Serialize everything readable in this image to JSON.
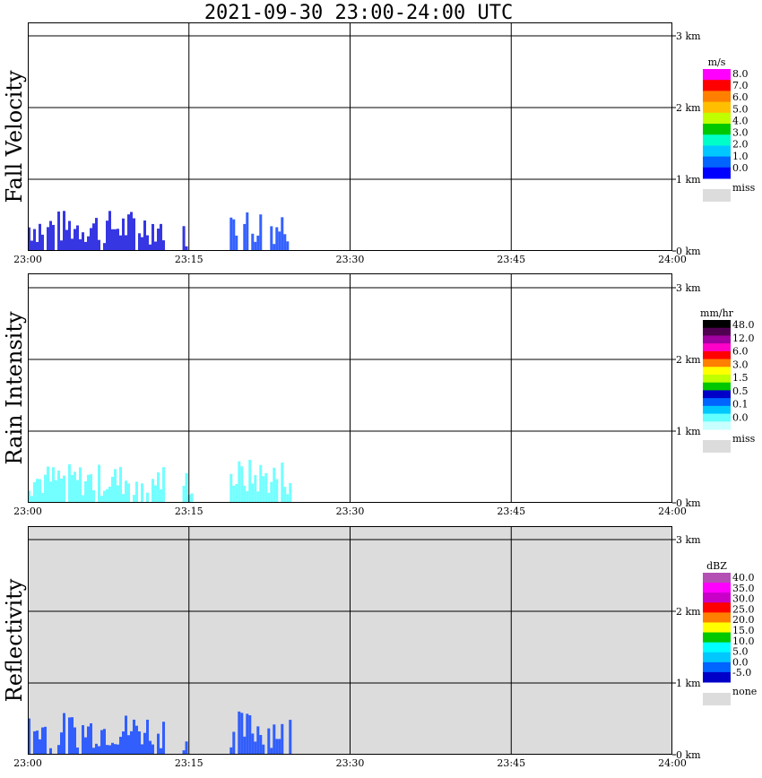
{
  "title": "2021-09-30   23:00-24:00 UTC",
  "colors": {
    "grid": "#000000",
    "plot_bg": "#ffffff",
    "missing_bg": "#dcdcdc"
  },
  "chart_data": [
    {
      "type": "heatmap",
      "ylabel": "Fall Velocity",
      "x_ticks": [
        "23:00",
        "23:15",
        "23:30",
        "23:45",
        "24:00"
      ],
      "y_ticks": [
        "0 km",
        "1 km",
        "2 km",
        "3 km"
      ],
      "xlim": [
        0,
        60
      ],
      "ylim": [
        0,
        3.0
      ],
      "background": "#ffffff",
      "legend": {
        "unit": "m/s",
        "labels": [
          "8.0",
          "7.0",
          "6.0",
          "5.0",
          "4.0",
          "3.0",
          "2.0",
          "1.0",
          "0.0"
        ],
        "colors": [
          "#ff00ff",
          "#ff0000",
          "#ff7f00",
          "#ffbf00",
          "#bfff00",
          "#00c800",
          "#00ffc8",
          "#00c8ff",
          "#0064ff",
          "#0000ff"
        ],
        "missing_label": "miss",
        "missing_color": "#dcdcdc"
      },
      "echoes": [
        {
          "t0": 0.0,
          "t1": 12.8,
          "top": 0.58,
          "color": "#2020e0"
        },
        {
          "t0": 14.4,
          "t1": 15.0,
          "top": 0.38,
          "color": "#2020e0"
        },
        {
          "t0": 18.8,
          "t1": 24.5,
          "top": 0.62,
          "color": "#1e50ff"
        }
      ]
    },
    {
      "type": "heatmap",
      "ylabel": "Rain Intensity",
      "x_ticks": [
        "23:00",
        "23:15",
        "23:30",
        "23:45",
        "24:00"
      ],
      "y_ticks": [
        "0 km",
        "1 km",
        "2 km",
        "3 km"
      ],
      "xlim": [
        0,
        60
      ],
      "ylim": [
        0,
        3.0
      ],
      "background": "#ffffff",
      "legend": {
        "unit": "mm/hr",
        "labels": [
          "48.0",
          "12.0",
          "6.0",
          "3.0",
          "1.5",
          "0.5",
          "0.1",
          "0.0"
        ],
        "colors": [
          "#000000",
          "#500050",
          "#a000a0",
          "#ff00c8",
          "#ff0000",
          "#ff7f00",
          "#ffff00",
          "#bfff00",
          "#00c800",
          "#0000c8",
          "#0064ff",
          "#00c8ff",
          "#64ffff",
          "#c8ffff"
        ],
        "missing_label": "miss",
        "missing_color": "#dcdcdc"
      },
      "echoes": [
        {
          "t0": 0.0,
          "t1": 12.8,
          "top": 0.55,
          "color": "#64ffff"
        },
        {
          "t0": 14.4,
          "t1": 15.4,
          "top": 0.5,
          "color": "#64ffff"
        },
        {
          "t0": 18.8,
          "t1": 24.5,
          "top": 0.62,
          "color": "#64ffff"
        }
      ]
    },
    {
      "type": "heatmap",
      "ylabel": "Reflectivity",
      "x_ticks": [
        "23:00",
        "23:15",
        "23:30",
        "23:45",
        "24:00"
      ],
      "y_ticks": [
        "0 km",
        "1 km",
        "2 km",
        "3 km"
      ],
      "xlim": [
        0,
        60
      ],
      "ylim": [
        0,
        3.0
      ],
      "background": "#dcdcdc",
      "legend": {
        "unit": "dBZ",
        "labels": [
          "40.0",
          "35.0",
          "30.0",
          "25.0",
          "20.0",
          "15.0",
          "10.0",
          "5.0",
          "0.0",
          "-5.0"
        ],
        "colors": [
          "#b450b4",
          "#ff00ff",
          "#c800c8",
          "#ff0000",
          "#ff7f00",
          "#ffff00",
          "#00c800",
          "#00ffff",
          "#00c8ff",
          "#0064ff",
          "#0000c8"
        ],
        "missing_label": "none",
        "missing_color": "#dcdcdc"
      },
      "echoes": [
        {
          "t0": 0.0,
          "t1": 12.8,
          "top": 0.6,
          "color": "#1e50ff"
        },
        {
          "t0": 14.4,
          "t1": 15.0,
          "top": 0.35,
          "color": "#1e50ff"
        },
        {
          "t0": 18.8,
          "t1": 24.5,
          "top": 0.62,
          "color": "#1e50ff"
        }
      ]
    }
  ]
}
